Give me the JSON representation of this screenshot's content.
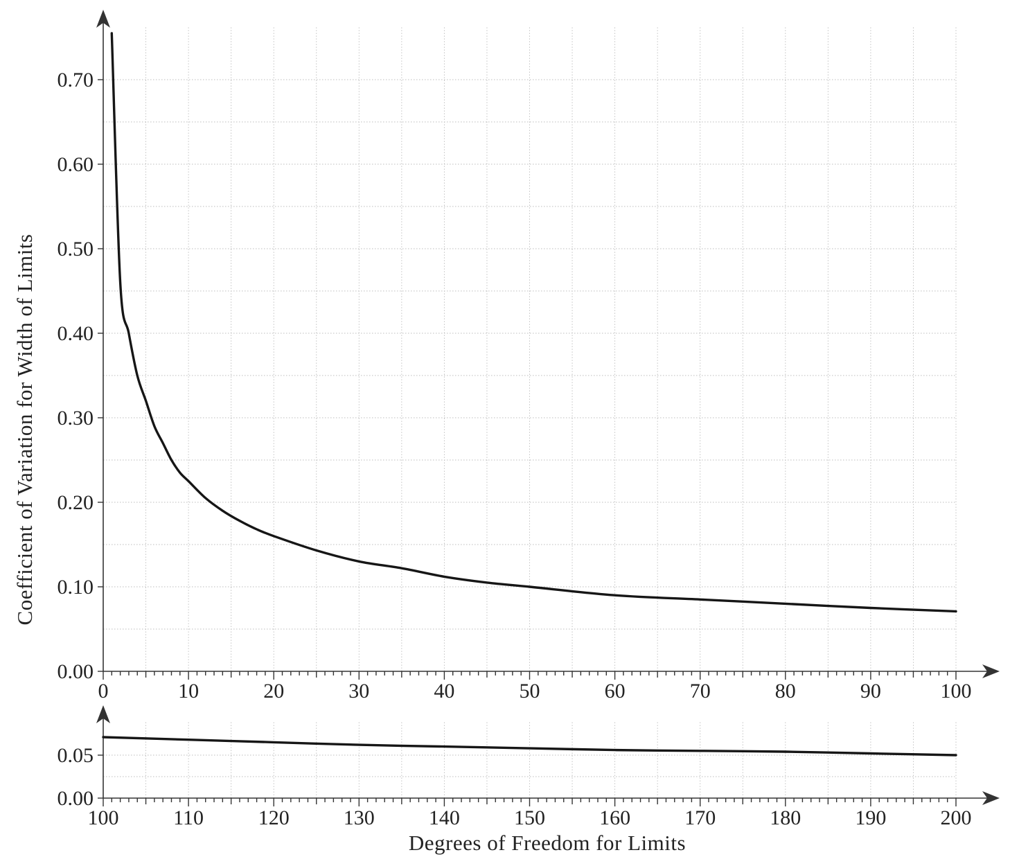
{
  "chart_data": [
    {
      "type": "line",
      "title": "",
      "xlabel": "",
      "ylabel": "Coefficient of Variation for Width of Limits",
      "xlim": [
        0,
        100
      ],
      "ylim": [
        0,
        0.7
      ],
      "xticks": [
        "0",
        "10",
        "20",
        "30",
        "40",
        "50",
        "60",
        "70",
        "80",
        "90",
        "100"
      ],
      "yticks": [
        "0.00",
        "0.10",
        "0.20",
        "0.30",
        "0.40",
        "0.50",
        "0.60",
        "0.70"
      ],
      "grid": true,
      "x": [
        1,
        2,
        3,
        4,
        5,
        6,
        7,
        8,
        9,
        10,
        12,
        14,
        16,
        18,
        20,
        25,
        30,
        35,
        40,
        45,
        50,
        60,
        70,
        80,
        90,
        100
      ],
      "y": [
        0.755,
        0.46,
        0.4,
        0.35,
        0.32,
        0.29,
        0.27,
        0.25,
        0.235,
        0.225,
        0.205,
        0.19,
        0.178,
        0.168,
        0.16,
        0.143,
        0.13,
        0.122,
        0.112,
        0.105,
        0.1,
        0.09,
        0.085,
        0.08,
        0.075,
        0.071
      ]
    },
    {
      "type": "line",
      "title": "",
      "xlabel": "Degrees of Freedom for Limits",
      "ylabel": "",
      "xlim": [
        100,
        200
      ],
      "ylim": [
        0,
        0.07
      ],
      "xticks": [
        "100",
        "110",
        "120",
        "130",
        "140",
        "150",
        "160",
        "170",
        "180",
        "190",
        "200"
      ],
      "yticks": [
        "0.00",
        "0.05"
      ],
      "grid": true,
      "x": [
        100,
        110,
        120,
        130,
        140,
        150,
        160,
        170,
        180,
        190,
        200
      ],
      "y": [
        0.071,
        0.068,
        0.065,
        0.062,
        0.06,
        0.058,
        0.056,
        0.055,
        0.054,
        0.052,
        0.05
      ]
    }
  ]
}
